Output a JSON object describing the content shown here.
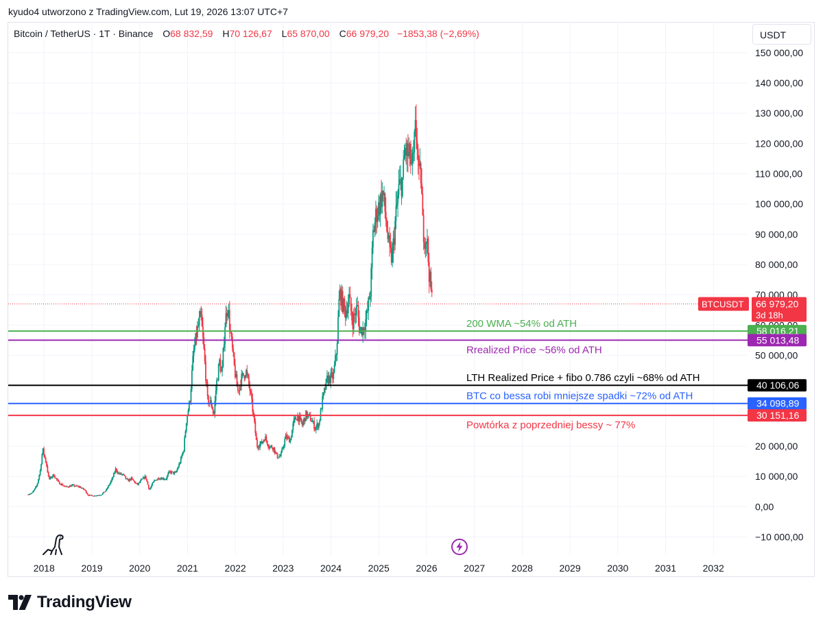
{
  "caption": "kyudo4 utworzono z TradingView.com, Lut 19, 2026 13:07 UTC+7",
  "legend": {
    "symbol": "Bitcoin / TetherUS · 1T · Binance",
    "o_label": "O",
    "o_value": "68 832,59",
    "h_label": "H",
    "h_value": "70 126,67",
    "l_label": "L",
    "l_value": "65 870,00",
    "c_label": "C",
    "c_value": "66 979,20",
    "change": "−1853,38 (−2,69%)"
  },
  "currency_button": "USDT",
  "branding": {
    "word": "TradingView"
  },
  "colors": {
    "up": "#089981",
    "down": "#f23645",
    "green": "#4caf50",
    "purple": "#9c27b0",
    "black": "#000000",
    "blue": "#2962ff",
    "red": "#f23645",
    "grid": "#f0f3fa",
    "axis_text": "#131722"
  },
  "chart_data": {
    "type": "candlestick",
    "symbol": "BTCUSDT",
    "x_range": [
      2017.25,
      2032.7
    ],
    "y_range": [
      -16000,
      152000
    ],
    "x_ticks": [
      "2018",
      "2019",
      "2020",
      "2021",
      "2022",
      "2023",
      "2024",
      "2025",
      "2026",
      "2027",
      "2028",
      "2029",
      "2030",
      "2031",
      "2032"
    ],
    "y_ticks": [
      {
        "value": -10000,
        "label": "−10 000,00"
      },
      {
        "value": 0,
        "label": "0,00"
      },
      {
        "value": 10000,
        "label": "10 000,00"
      },
      {
        "value": 20000,
        "label": "20 000,00"
      },
      {
        "value": 30000,
        "label": "30 000,00"
      },
      {
        "value": 40000,
        "label": "40 000,00"
      },
      {
        "value": 50000,
        "label": "50 000,00"
      },
      {
        "value": 60000,
        "label": "60 000,00"
      },
      {
        "value": 70000,
        "label": "70 000,00"
      },
      {
        "value": 80000,
        "label": "80 000,00"
      },
      {
        "value": 90000,
        "label": "90 000,00"
      },
      {
        "value": 100000,
        "label": "100 000,00"
      },
      {
        "value": 110000,
        "label": "110 000,00"
      },
      {
        "value": 120000,
        "label": "120 000,00"
      },
      {
        "value": 130000,
        "label": "130 000,00"
      },
      {
        "value": 140000,
        "label": "140 000,00"
      },
      {
        "value": 150000,
        "label": "150 000,00"
      }
    ],
    "price_path": [
      [
        2017.65,
        4000
      ],
      [
        2017.75,
        4500
      ],
      [
        2017.85,
        7000
      ],
      [
        2017.92,
        12000
      ],
      [
        2017.97,
        19000
      ],
      [
        2018.05,
        14000
      ],
      [
        2018.1,
        9000
      ],
      [
        2018.2,
        10500
      ],
      [
        2018.3,
        8000
      ],
      [
        2018.45,
        6500
      ],
      [
        2018.6,
        7000
      ],
      [
        2018.75,
        6500
      ],
      [
        2018.85,
        5500
      ],
      [
        2018.92,
        3800
      ],
      [
        2019.05,
        3600
      ],
      [
        2019.2,
        4000
      ],
      [
        2019.3,
        5500
      ],
      [
        2019.42,
        9000
      ],
      [
        2019.5,
        12500
      ],
      [
        2019.55,
        11000
      ],
      [
        2019.65,
        10500
      ],
      [
        2019.75,
        8500
      ],
      [
        2019.82,
        9300
      ],
      [
        2019.95,
        7200
      ],
      [
        2020.05,
        9000
      ],
      [
        2020.12,
        10000
      ],
      [
        2020.2,
        5500
      ],
      [
        2020.3,
        8500
      ],
      [
        2020.4,
        9500
      ],
      [
        2020.55,
        9200
      ],
      [
        2020.62,
        11500
      ],
      [
        2020.75,
        11000
      ],
      [
        2020.85,
        15000
      ],
      [
        2020.92,
        19000
      ],
      [
        2020.98,
        29000
      ],
      [
        2021.05,
        35000
      ],
      [
        2021.12,
        50000
      ],
      [
        2021.2,
        58000
      ],
      [
        2021.28,
        63000
      ],
      [
        2021.35,
        50000
      ],
      [
        2021.42,
        35000
      ],
      [
        2021.5,
        34000
      ],
      [
        2021.55,
        30000
      ],
      [
        2021.6,
        40000
      ],
      [
        2021.67,
        48000
      ],
      [
        2021.72,
        43000
      ],
      [
        2021.78,
        60000
      ],
      [
        2021.84,
        67000
      ],
      [
        2021.9,
        57000
      ],
      [
        2021.97,
        47000
      ],
      [
        2022.05,
        38000
      ],
      [
        2022.12,
        42000
      ],
      [
        2022.22,
        45000
      ],
      [
        2022.3,
        39000
      ],
      [
        2022.38,
        30000
      ],
      [
        2022.45,
        20000
      ],
      [
        2022.55,
        21000
      ],
      [
        2022.62,
        23000
      ],
      [
        2022.7,
        20000
      ],
      [
        2022.8,
        19500
      ],
      [
        2022.87,
        16500
      ],
      [
        2022.95,
        16800
      ],
      [
        2023.05,
        23000
      ],
      [
        2023.15,
        22000
      ],
      [
        2023.22,
        28000
      ],
      [
        2023.3,
        30000
      ],
      [
        2023.4,
        27000
      ],
      [
        2023.48,
        30500
      ],
      [
        2023.58,
        29000
      ],
      [
        2023.67,
        26000
      ],
      [
        2023.75,
        27500
      ],
      [
        2023.82,
        35000
      ],
      [
        2023.92,
        42000
      ],
      [
        2024.05,
        43000
      ],
      [
        2024.12,
        52000
      ],
      [
        2024.18,
        71000
      ],
      [
        2024.3,
        64000
      ],
      [
        2024.38,
        69000
      ],
      [
        2024.45,
        61000
      ],
      [
        2024.55,
        66000
      ],
      [
        2024.6,
        58000
      ],
      [
        2024.68,
        59000
      ],
      [
        2024.75,
        63000
      ],
      [
        2024.83,
        72000
      ],
      [
        2024.88,
        90000
      ],
      [
        2024.95,
        97000
      ],
      [
        2025.02,
        100000
      ],
      [
        2025.08,
        104000
      ],
      [
        2025.15,
        95000
      ],
      [
        2025.22,
        84000
      ],
      [
        2025.28,
        82000
      ],
      [
        2025.35,
        95000
      ],
      [
        2025.42,
        105000
      ],
      [
        2025.5,
        108000
      ],
      [
        2025.55,
        118000
      ],
      [
        2025.62,
        116000
      ],
      [
        2025.68,
        114000
      ],
      [
        2025.72,
        112000
      ],
      [
        2025.76,
        124000
      ],
      [
        2025.8,
        122000
      ],
      [
        2025.84,
        108000
      ],
      [
        2025.88,
        110000
      ],
      [
        2025.92,
        93000
      ],
      [
        2025.97,
        88000
      ],
      [
        2026.0,
        90000
      ],
      [
        2026.05,
        78000
      ],
      [
        2026.1,
        70000
      ],
      [
        2026.13,
        66979
      ]
    ],
    "current_price": {
      "value": 66979.2,
      "label": "66 979,20",
      "symbol_label": "BTCUSDT",
      "countdown": "3d 18h"
    },
    "levels": [
      {
        "value": 58016.21,
        "label": "58 016,21",
        "text": "200 WMA ~54% od ATH",
        "color": "#4caf50"
      },
      {
        "value": 55013.48,
        "label": "55 013,48",
        "text": "Rrealized Price ~56% od ATH",
        "color": "#9c27b0"
      },
      {
        "value": 40106.06,
        "label": "40 106,06",
        "text": "LTH Realized Price + fibo 0.786 czyli ~68% od ATH",
        "color": "#000000"
      },
      {
        "value": 34098.89,
        "label": "34 098,89",
        "text": "BTC co bessa robi mniejsze spadki ~72% od ATH",
        "color": "#2962ff"
      },
      {
        "value": 30151.16,
        "label": "30 151,16",
        "text": "Powtórka z poprzedniej bessy ~ 77%",
        "color": "#f23645"
      }
    ]
  }
}
